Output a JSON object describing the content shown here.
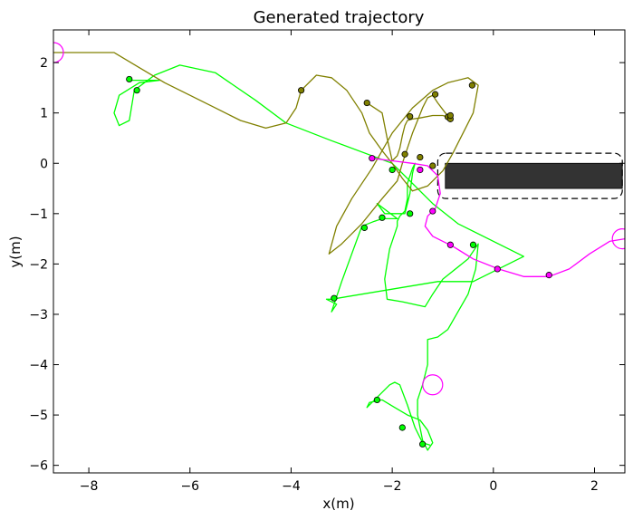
{
  "chart_data": {
    "type": "line",
    "title": "Generated trajectory",
    "xlabel": "x(m)",
    "ylabel": "y(m)",
    "xlim": [
      -8.7,
      2.6
    ],
    "ylim": [
      -6.15,
      2.65
    ],
    "xticks": [
      -8,
      -6,
      -4,
      -2,
      0,
      2
    ],
    "yticks": [
      2,
      1,
      0,
      -1,
      -2,
      -3,
      -4,
      -5,
      -6
    ],
    "xtick_labels": [
      "−8",
      "−6",
      "−4",
      "−2",
      "0",
      "2"
    ],
    "ytick_labels": [
      "2",
      "1",
      "0",
      "−1",
      "−2",
      "−3",
      "−4",
      "−5",
      "−6"
    ],
    "grid": false,
    "series": [
      {
        "color": "#00ff00",
        "x": [
          -7.2,
          -6.6,
          -7.0,
          -7.4,
          -7.5,
          -7.4,
          -7.2,
          -7.1,
          -6.9,
          -6.7,
          -6.2,
          -5.5,
          -4.7,
          -4.1,
          -3.2,
          -2.0,
          -1.6,
          -1.2,
          -0.7,
          0.6,
          -0.4,
          -1.1,
          -3.2,
          -3.3,
          -3.1,
          -3.2,
          -3.0,
          -2.6,
          -2.35,
          -2.2,
          -1.9,
          -2.3,
          -2.15,
          -1.75,
          -1.65,
          -1.6,
          -1.55,
          -1.6,
          -1.7,
          -1.7,
          -1.75,
          -1.85,
          -1.9,
          -1.9,
          -1.95,
          -2.05,
          -2.1,
          -2.15,
          -2.1,
          -1.8,
          -1.35,
          -1.2,
          -1.0,
          -0.5,
          -0.3,
          -0.35,
          -0.5,
          -0.7,
          -0.9,
          -1.1,
          -1.3,
          -1.3,
          -1.4,
          -1.5,
          -1.5,
          -1.4,
          -1.3,
          -1.2,
          -1.3,
          -1.45,
          -1.7,
          -1.95,
          -2.2,
          -2.45,
          -2.5,
          -2.35,
          -2.2,
          -2.05,
          -1.95,
          -1.85,
          -1.7,
          -1.55,
          -1.4,
          -1.25
        ],
        "y": [
          1.65,
          1.65,
          1.6,
          1.35,
          1.0,
          0.75,
          0.85,
          1.45,
          1.6,
          1.75,
          1.95,
          1.8,
          1.25,
          0.8,
          0.45,
          0.0,
          -0.4,
          -0.8,
          -1.2,
          -1.85,
          -2.35,
          -2.35,
          -2.7,
          -2.7,
          -2.8,
          -2.95,
          -2.35,
          -1.25,
          -1.15,
          -1.1,
          -1.1,
          -0.8,
          -1.0,
          -1.0,
          -0.6,
          -0.2,
          0.0,
          -0.1,
          -0.4,
          -0.7,
          -0.95,
          -1.05,
          -1.15,
          -1.25,
          -1.4,
          -1.7,
          -2.0,
          -2.3,
          -2.7,
          -2.75,
          -2.85,
          -2.6,
          -2.3,
          -1.9,
          -1.6,
          -2.1,
          -2.6,
          -2.95,
          -3.3,
          -3.45,
          -3.5,
          -4.0,
          -4.4,
          -4.7,
          -5.0,
          -5.5,
          -5.7,
          -5.55,
          -5.3,
          -5.1,
          -5.0,
          -4.85,
          -4.7,
          -4.75,
          -4.85,
          -4.7,
          -4.55,
          -4.4,
          -4.35,
          -4.4,
          -4.8,
          -5.25,
          -5.55,
          -5.6
        ],
        "markers": [
          [
            -7.2,
            1.67
          ],
          [
            -7.05,
            1.45
          ],
          [
            -3.15,
            -2.68
          ],
          [
            -2.55,
            -1.28
          ],
          [
            -2.2,
            -1.08
          ],
          [
            -2.0,
            -0.13
          ],
          [
            -1.65,
            -1.0
          ],
          [
            -0.4,
            -1.62
          ],
          [
            -2.3,
            -4.7
          ],
          [
            -1.8,
            -5.25
          ],
          [
            -1.4,
            -5.58
          ]
        ]
      },
      {
        "color": "#808000",
        "x": [
          -8.7,
          -7.5,
          -7.0,
          -6.5,
          -6.0,
          -5.5,
          -5.0,
          -4.5,
          -4.1,
          -3.9,
          -3.8,
          -3.5,
          -3.2,
          -2.9,
          -2.6,
          -2.45,
          -2.2,
          -2.0,
          -1.8,
          -1.6,
          -1.3,
          -1.0,
          -0.8,
          -0.6,
          -0.4,
          -0.3,
          -0.5,
          -0.9,
          -1.2,
          -1.6,
          -2.0,
          -2.4,
          -2.8,
          -3.1,
          -3.25,
          -3.0,
          -2.6,
          -2.2,
          -1.9,
          -1.8,
          -1.7,
          -1.6,
          -1.5,
          -1.4,
          -1.3,
          -1.2,
          -1.1,
          -0.95,
          -0.85,
          -1.0,
          -1.2,
          -1.45,
          -1.6,
          -1.7,
          -1.75,
          -1.8,
          -1.85,
          -1.9,
          -2.0,
          -2.1,
          -2.2,
          -2.5
        ],
        "y": [
          2.2,
          2.2,
          1.9,
          1.6,
          1.35,
          1.1,
          0.85,
          0.7,
          0.8,
          1.1,
          1.45,
          1.75,
          1.7,
          1.45,
          1.0,
          0.6,
          0.25,
          0.0,
          -0.3,
          -0.55,
          -0.45,
          -0.15,
          0.2,
          0.6,
          1.0,
          1.55,
          1.7,
          1.6,
          1.45,
          1.1,
          0.6,
          -0.1,
          -0.7,
          -1.25,
          -1.8,
          -1.6,
          -1.2,
          -0.7,
          -0.35,
          0.0,
          0.3,
          0.6,
          0.85,
          1.1,
          1.3,
          1.35,
          1.2,
          1.0,
          0.9,
          0.95,
          0.95,
          0.9,
          0.88,
          0.85,
          0.75,
          0.55,
          0.3,
          0.15,
          0.05,
          0.5,
          1.0,
          1.2
        ],
        "markers": [
          [
            -3.8,
            1.45
          ],
          [
            -2.5,
            1.2
          ],
          [
            -1.65,
            0.93
          ],
          [
            -1.75,
            0.18
          ],
          [
            -1.45,
            0.12
          ],
          [
            -1.2,
            -0.05
          ],
          [
            -1.15,
            1.37
          ],
          [
            -0.9,
            0.92
          ],
          [
            -0.85,
            0.88
          ],
          [
            -0.85,
            0.95
          ],
          [
            -0.42,
            1.55
          ]
        ]
      },
      {
        "color": "#ff00ff",
        "x": [
          2.6,
          2.3,
          1.9,
          1.5,
          1.1,
          0.6,
          0.1,
          -0.4,
          -0.8,
          -1.2,
          -1.35,
          -1.3,
          -1.15,
          -1.05,
          -1.1,
          -1.3,
          -1.6,
          -2.0,
          -2.4
        ],
        "y": [
          -1.5,
          -1.55,
          -1.8,
          -2.1,
          -2.25,
          -2.25,
          -2.1,
          -1.9,
          -1.65,
          -1.45,
          -1.25,
          -1.05,
          -0.9,
          -0.6,
          -0.25,
          -0.05,
          0.0,
          0.05,
          0.1
        ],
        "markers": [
          [
            -2.4,
            0.1
          ],
          [
            -1.45,
            -0.13
          ],
          [
            -1.2,
            -0.95
          ],
          [
            -0.85,
            -1.62
          ],
          [
            0.08,
            -2.1
          ],
          [
            1.1,
            -2.22
          ]
        ]
      }
    ],
    "circles": [
      {
        "x": -8.7,
        "y": 2.2,
        "color": "#ff00ff"
      },
      {
        "x": 2.55,
        "y": -1.5,
        "color": "#ff00ff"
      },
      {
        "x": -1.2,
        "y": -4.4,
        "color": "#ff00ff"
      }
    ],
    "obstacle": {
      "x": [
        -0.95,
        2.55
      ],
      "y": [
        -0.5,
        0.0
      ],
      "fill": "#333333",
      "boundary_x": [
        -1.1,
        2.55
      ],
      "boundary_y": [
        -0.7,
        0.2
      ]
    }
  }
}
